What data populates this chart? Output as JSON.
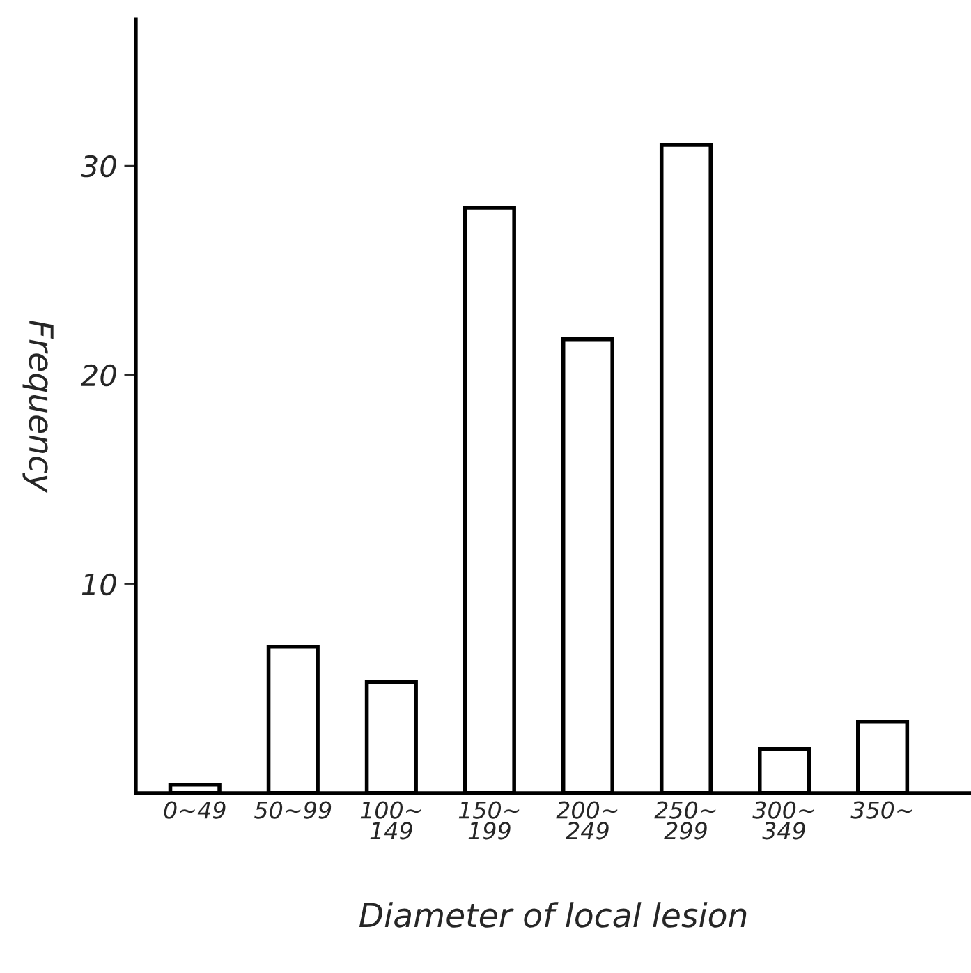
{
  "chart_data": {
    "type": "bar",
    "xlabel": "Diameter of local lesion",
    "ylabel": "Frequency",
    "categories": [
      "0~49",
      "50~99",
      "100~\n149",
      "150~\n199",
      "200~\n249",
      "250~\n299",
      "300~\n349",
      "350~"
    ],
    "values": [
      0.4,
      7,
      5.3,
      28,
      21.7,
      31,
      2.1,
      3.4
    ],
    "color": "#ffffff",
    "ylim": [
      0,
      37
    ],
    "yticks": [
      10,
      20,
      30
    ],
    "grid": false,
    "legend": false
  }
}
